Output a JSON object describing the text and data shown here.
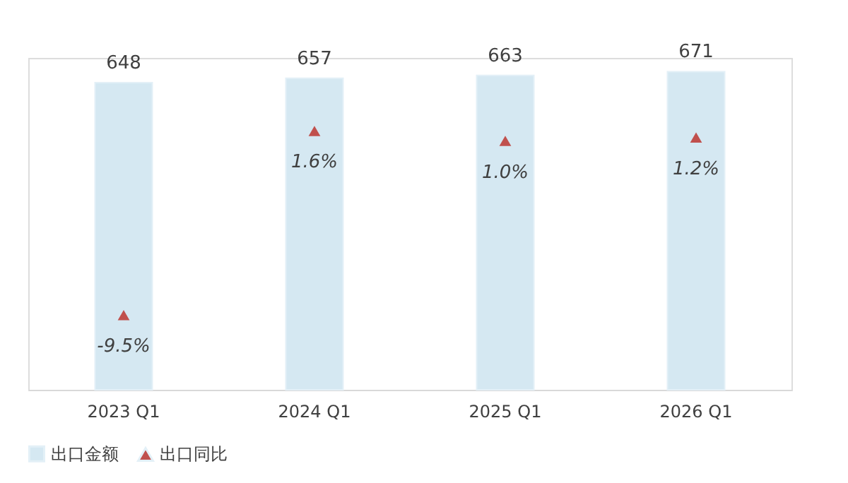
{
  "chart_data": {
    "type": "bar",
    "categories": [
      "2023 Q1",
      "2024 Q1",
      "2025 Q1",
      "2026 Q1"
    ],
    "tick_labels": "x",
    "legend": "bottom",
    "series": [
      {
        "name": "出口金额",
        "color": "#d5e8f2",
        "values": [
          648,
          657,
          663,
          671
        ],
        "value_labels": [
          "648",
          "657",
          "663",
          "671"
        ]
      },
      {
        "name": "出口同比",
        "type": "scatter",
        "axis": "y2",
        "marker": "triangle",
        "color": "#c0504d",
        "values": [
          -9.5,
          1.6,
          1.0,
          1.2
        ],
        "value_labels": [
          "-9.5%",
          "1.6%",
          "1.0%",
          "1.2%"
        ]
      }
    ]
  }
}
